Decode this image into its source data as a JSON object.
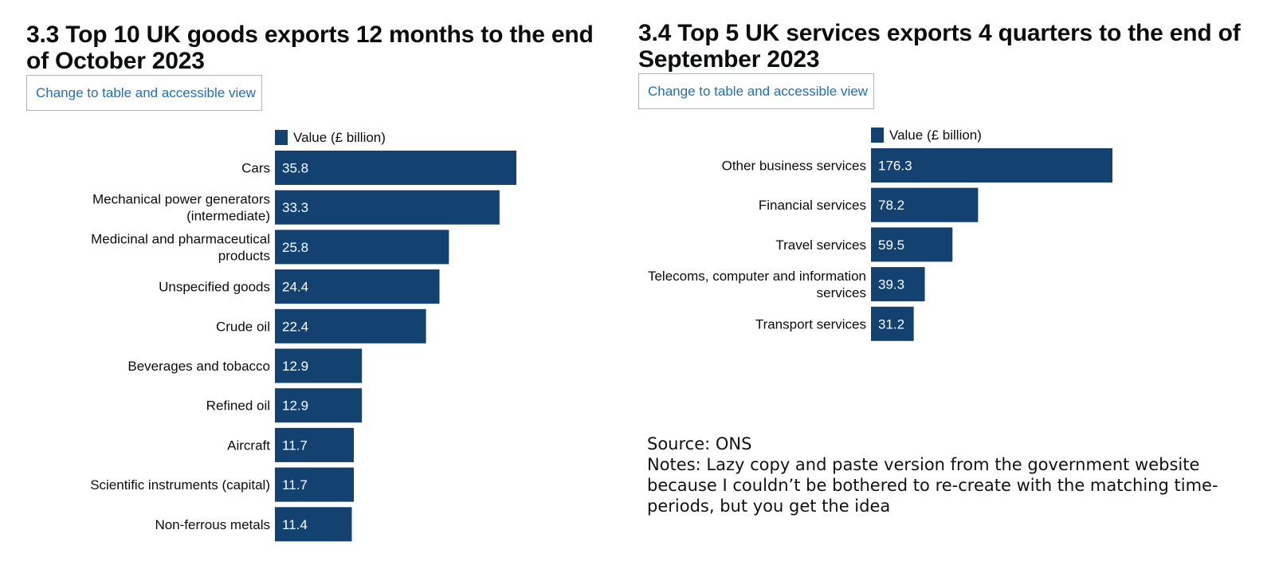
{
  "chart_data": [
    {
      "type": "bar",
      "orientation": "horizontal",
      "number": "3.3",
      "title": "Top 10 UK goods exports 12 months to the end of October 2023",
      "toggle_label": "Change to table and accessible view",
      "legend": "Value (£ billion)",
      "color": "#134270",
      "categories": [
        [
          "Cars"
        ],
        [
          "Mechanical power generators",
          "(intermediate)"
        ],
        [
          "Medicinal and pharmaceutical",
          "products"
        ],
        [
          "Unspecified goods"
        ],
        [
          "Crude oil"
        ],
        [
          "Beverages and tobacco"
        ],
        [
          "Refined oil"
        ],
        [
          "Aircraft"
        ],
        [
          "Scientific instruments (capital)"
        ],
        [
          "Non-ferrous metals"
        ]
      ],
      "values": [
        35.8,
        33.3,
        25.8,
        24.4,
        22.4,
        12.9,
        12.9,
        11.7,
        11.7,
        11.4
      ]
    },
    {
      "type": "bar",
      "orientation": "horizontal",
      "number": "3.4",
      "title": "Top 5 UK services exports 4 quarters to the end of September 2023",
      "toggle_label": "Change to table and accessible view",
      "legend": "Value (£ billion)",
      "color": "#134270",
      "categories": [
        [
          "Other business services"
        ],
        [
          "Financial services"
        ],
        [
          "Travel services"
        ],
        [
          "Telecoms, computer and information",
          "services"
        ],
        [
          "Transport services"
        ]
      ],
      "values": [
        176.3,
        78.2,
        59.5,
        39.3,
        31.2
      ]
    }
  ],
  "notes": {
    "source": "Source: ONS",
    "notes": "Notes: Lazy copy and paste version from the government website because I couldn’t be bothered to re-create with the matching time-periods, but you get the idea"
  }
}
